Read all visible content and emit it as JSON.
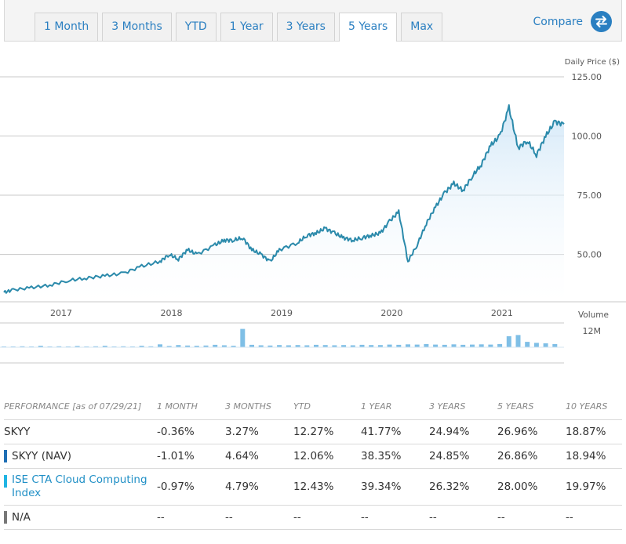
{
  "toolbar": {
    "tabs": [
      {
        "label": "1 Month",
        "active": false
      },
      {
        "label": "3 Months",
        "active": false
      },
      {
        "label": "YTD",
        "active": false
      },
      {
        "label": "1 Year",
        "active": false
      },
      {
        "label": "3 Years",
        "active": false
      },
      {
        "label": "5 Years",
        "active": true
      },
      {
        "label": "Max",
        "active": false
      }
    ],
    "compare_label": "Compare",
    "compare_icon": "swap-arrows-icon"
  },
  "colors": {
    "accent": "#2a7fc1",
    "price_line": "#2b8aab",
    "volume_bar": "#7fbfe6",
    "nav_swatch": "#1f6fb5",
    "index_swatch": "#20b4e3",
    "na_swatch": "#777777"
  },
  "chart_data": [
    {
      "type": "line",
      "ylabel": "Daily Price ($)",
      "ylim": [
        30,
        125
      ],
      "yticks": [
        "125.00",
        "100.00",
        "75.00",
        "50.00"
      ],
      "xticks": [
        "2017",
        "2018",
        "2019",
        "2020",
        "2021"
      ],
      "x_range": [
        "2016-07",
        "2021-08"
      ],
      "grid": true,
      "points": [
        [
          "2016-07",
          34
        ],
        [
          "2016-08",
          35
        ],
        [
          "2016-10",
          36
        ],
        [
          "2016-12",
          37
        ],
        [
          "2017-02",
          39
        ],
        [
          "2017-04",
          40
        ],
        [
          "2017-06",
          41
        ],
        [
          "2017-08",
          42
        ],
        [
          "2017-10",
          45
        ],
        [
          "2017-12",
          47
        ],
        [
          "2018-01",
          50
        ],
        [
          "2018-02",
          48
        ],
        [
          "2018-03",
          52
        ],
        [
          "2018-04",
          50
        ],
        [
          "2018-06",
          54
        ],
        [
          "2018-07",
          56
        ],
        [
          "2018-08",
          56
        ],
        [
          "2018-09",
          57
        ],
        [
          "2018-10",
          52
        ],
        [
          "2018-11",
          50
        ],
        [
          "2018-12",
          47
        ],
        [
          "2019-01",
          52
        ],
        [
          "2019-03",
          55
        ],
        [
          "2019-04",
          58
        ],
        [
          "2019-05",
          59
        ],
        [
          "2019-06",
          61
        ],
        [
          "2019-07",
          59
        ],
        [
          "2019-08",
          57
        ],
        [
          "2019-09",
          56
        ],
        [
          "2019-10",
          57
        ],
        [
          "2019-11",
          58
        ],
        [
          "2019-12",
          59
        ],
        [
          "2020-01",
          64
        ],
        [
          "2020-02",
          68
        ],
        [
          "2020-03",
          47
        ],
        [
          "2020-04",
          54
        ],
        [
          "2020-05",
          63
        ],
        [
          "2020-06",
          70
        ],
        [
          "2020-07",
          76
        ],
        [
          "2020-08",
          80
        ],
        [
          "2020-09",
          77
        ],
        [
          "2020-10",
          83
        ],
        [
          "2020-11",
          88
        ],
        [
          "2020-12",
          96
        ],
        [
          "2021-01",
          100
        ],
        [
          "2021-02",
          112
        ],
        [
          "2021-03",
          95
        ],
        [
          "2021-04",
          98
        ],
        [
          "2021-05",
          92
        ],
        [
          "2021-06",
          100
        ],
        [
          "2021-07",
          106
        ],
        [
          "2021-08",
          105
        ]
      ]
    },
    {
      "type": "bar",
      "ylabel": "Volume",
      "ytick": "12M",
      "xticks": [
        "2017",
        "2018",
        "2019",
        "2020",
        "2021"
      ],
      "categories": [
        "2016-07",
        "2016-08",
        "2016-09",
        "2016-10",
        "2016-11",
        "2016-12",
        "2017-01",
        "2017-02",
        "2017-03",
        "2017-04",
        "2017-05",
        "2017-06",
        "2017-07",
        "2017-08",
        "2017-09",
        "2017-10",
        "2017-11",
        "2017-12",
        "2018-01",
        "2018-02",
        "2018-03",
        "2018-04",
        "2018-05",
        "2018-06",
        "2018-07",
        "2018-08",
        "2018-09",
        "2018-10",
        "2018-11",
        "2018-12",
        "2019-01",
        "2019-02",
        "2019-03",
        "2019-04",
        "2019-05",
        "2019-06",
        "2019-07",
        "2019-08",
        "2019-09",
        "2019-10",
        "2019-11",
        "2019-12",
        "2020-01",
        "2020-02",
        "2020-03",
        "2020-04",
        "2020-05",
        "2020-06",
        "2020-07",
        "2020-08",
        "2020-09",
        "2020-10",
        "2020-11",
        "2020-12",
        "2021-01",
        "2021-02",
        "2021-03",
        "2021-04",
        "2021-05",
        "2021-06",
        "2021-07"
      ],
      "values_m": [
        0.3,
        0.2,
        0.4,
        0.3,
        0.6,
        0.3,
        0.4,
        0.3,
        0.5,
        0.3,
        0.4,
        0.6,
        0.3,
        0.4,
        0.3,
        0.6,
        0.4,
        1.2,
        0.5,
        0.9,
        0.7,
        0.6,
        0.7,
        1.0,
        0.8,
        0.6,
        7.5,
        1.0,
        0.8,
        0.7,
        0.9,
        0.8,
        0.9,
        0.8,
        1.0,
        0.9,
        0.8,
        0.9,
        0.8,
        1.0,
        0.9,
        0.9,
        1.1,
        1.0,
        1.2,
        1.1,
        1.3,
        1.1,
        1.0,
        1.2,
        1.0,
        1.1,
        1.2,
        1.1,
        1.3,
        4.5,
        5.0,
        2.2,
        1.8,
        1.6,
        1.3
      ]
    }
  ],
  "performance": {
    "header": {
      "label": "PERFORMANCE [as of 07/29/21]",
      "columns": [
        "1 MONTH",
        "3 MONTHS",
        "YTD",
        "1 YEAR",
        "3 YEARS",
        "5 YEARS",
        "10 YEARS"
      ]
    },
    "rows": [
      {
        "name": "SKYY",
        "values": [
          "-0.36%",
          "3.27%",
          "12.27%",
          "41.77%",
          "24.94%",
          "26.96%",
          "18.87%"
        ]
      },
      {
        "name": "SKYY (NAV)",
        "values": [
          "-1.01%",
          "4.64%",
          "12.06%",
          "38.35%",
          "24.85%",
          "26.86%",
          "18.94%"
        ]
      },
      {
        "name": "ISE CTA Cloud Computing Index",
        "values": [
          "-0.97%",
          "4.79%",
          "12.43%",
          "39.34%",
          "26.32%",
          "28.00%",
          "19.97%"
        ]
      },
      {
        "name": "N/A",
        "values": [
          "--",
          "--",
          "--",
          "--",
          "--",
          "--",
          "--"
        ]
      }
    ]
  }
}
